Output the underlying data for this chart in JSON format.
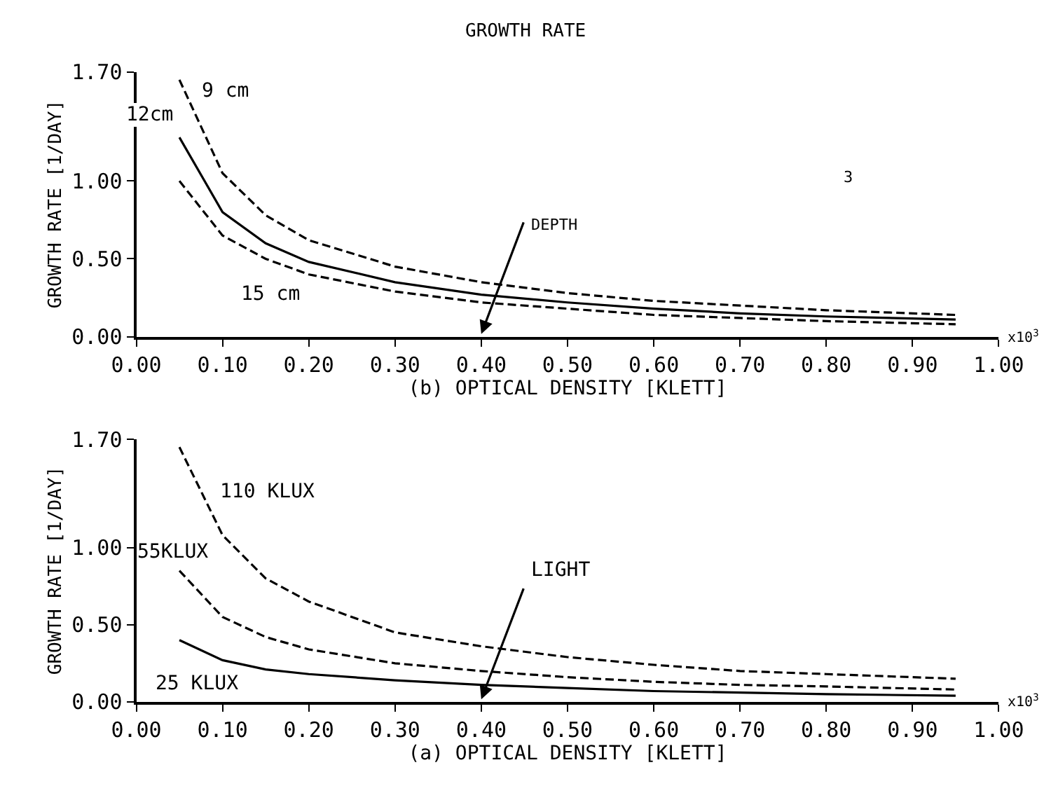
{
  "chart_data": [
    {
      "type": "line",
      "title": "GROWTH RATE",
      "xlabel": "(b) OPTICAL DENSITY [KLETT]",
      "ylabel": "GROWTH RATE [1/DAY]",
      "x": [
        0.05,
        0.1,
        0.15,
        0.2,
        0.3,
        0.4,
        0.5,
        0.6,
        0.7,
        0.8,
        0.95
      ],
      "series": [
        {
          "name": "9 cm",
          "color": "#000000",
          "line_style": "dashed",
          "values": [
            1.65,
            1.05,
            0.78,
            0.62,
            0.45,
            0.35,
            0.28,
            0.23,
            0.2,
            0.17,
            0.14
          ]
        },
        {
          "name": "12cm",
          "color": "#000000",
          "line_style": "solid",
          "values": [
            1.28,
            0.8,
            0.6,
            0.48,
            0.35,
            0.27,
            0.22,
            0.18,
            0.15,
            0.13,
            0.11
          ]
        },
        {
          "name": "15 cm",
          "color": "#000000",
          "line_style": "dashed",
          "values": [
            1.0,
            0.65,
            0.5,
            0.4,
            0.29,
            0.22,
            0.18,
            0.14,
            0.12,
            0.1,
            0.08
          ]
        }
      ],
      "annotations": [
        "DEPTH",
        "3",
        "x10$^{3}$"
      ],
      "xlim": [
        0,
        1
      ],
      "xticks": [
        {
          "value": 0,
          "label": "0.00"
        },
        {
          "value": 0.1,
          "label": "0.10"
        },
        {
          "value": 0.2,
          "label": "0.20"
        },
        {
          "value": 0.3,
          "label": "0.30"
        },
        {
          "value": 0.4,
          "label": "0.40"
        },
        {
          "value": 0.5,
          "label": "0.50"
        },
        {
          "value": 0.6,
          "label": "0.60"
        },
        {
          "value": 0.7,
          "label": "0.70"
        },
        {
          "value": 0.8,
          "label": "0.80"
        },
        {
          "value": 0.9,
          "label": "0.90"
        },
        {
          "value": 1,
          "label": "1.00"
        }
      ],
      "ylim": [
        0,
        1.7
      ],
      "yticks": [
        {
          "value": 0,
          "label": "0.00"
        },
        {
          "value": 0.5,
          "label": "0.50"
        },
        {
          "value": 1,
          "label": "1.00"
        },
        {
          "value": 1.7,
          "label": "1.70"
        }
      ],
      "legend": false,
      "marker": "none"
    },
    {
      "type": "line",
      "xlabel": "(a) OPTICAL DENSITY [KLETT]",
      "ylabel": "GROWTH RATE [1/DAY]",
      "x": [
        0.05,
        0.1,
        0.15,
        0.2,
        0.3,
        0.4,
        0.5,
        0.6,
        0.7,
        0.8,
        0.95
      ],
      "series": [
        {
          "name": "110 KLUX",
          "color": "#000000",
          "line_style": "dashed",
          "values": [
            1.65,
            1.08,
            0.8,
            0.65,
            0.45,
            0.36,
            0.29,
            0.24,
            0.2,
            0.18,
            0.15
          ]
        },
        {
          "name": "55KLUX",
          "color": "#000000",
          "line_style": "dashed",
          "values": [
            0.85,
            0.55,
            0.42,
            0.34,
            0.25,
            0.2,
            0.16,
            0.13,
            0.11,
            0.1,
            0.08
          ]
        },
        {
          "name": "25 KLUX",
          "color": "#000000",
          "line_style": "solid",
          "values": [
            0.4,
            0.27,
            0.21,
            0.18,
            0.14,
            0.11,
            0.09,
            0.07,
            0.06,
            0.05,
            0.04
          ]
        }
      ],
      "annotations": [
        "LIGHT",
        "x10$^{3}$"
      ],
      "xlim": [
        0,
        1
      ],
      "xticks": [
        {
          "value": 0,
          "label": "0.00"
        },
        {
          "value": 0.1,
          "label": "0.10"
        },
        {
          "value": 0.2,
          "label": "0.20"
        },
        {
          "value": 0.3,
          "label": "0.30"
        },
        {
          "value": 0.4,
          "label": "0.40"
        },
        {
          "value": 0.5,
          "label": "0.50"
        },
        {
          "value": 0.6,
          "label": "0.60"
        },
        {
          "value": 0.7,
          "label": "0.70"
        },
        {
          "value": 0.8,
          "label": "0.80"
        },
        {
          "value": 0.9,
          "label": "0.90"
        },
        {
          "value": 1,
          "label": "1.00"
        }
      ],
      "ylim": [
        0,
        1.7
      ],
      "yticks": [
        {
          "value": 0,
          "label": "0.00"
        },
        {
          "value": 0.5,
          "label": "0.50"
        },
        {
          "value": 1,
          "label": "1.00"
        },
        {
          "value": 1.7,
          "label": "1.70"
        }
      ],
      "legend": false,
      "marker": "none"
    }
  ]
}
